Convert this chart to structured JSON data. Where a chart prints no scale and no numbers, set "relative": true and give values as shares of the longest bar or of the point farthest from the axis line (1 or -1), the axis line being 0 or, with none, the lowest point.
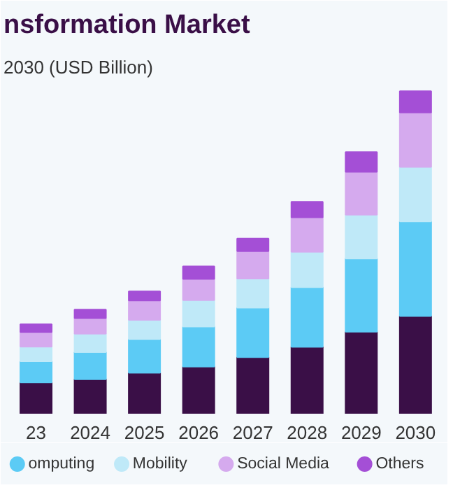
{
  "chart_data": {
    "type": "bar",
    "title": "nsformation Market",
    "subtitle": "2030 (USD Billion)",
    "categories": [
      "23",
      "2024",
      "2025",
      "2026",
      "2027",
      "2028",
      "2029",
      "2030"
    ],
    "stacked": true,
    "relative": true,
    "legend": "bottom",
    "grid": false,
    "series": [
      {
        "color": "#3a0f47",
        "values": [
          0.097,
          0.107,
          0.127,
          0.146,
          0.175,
          0.207,
          0.254,
          0.303
        ]
      },
      {
        "name": "omputing",
        "color": "#5ccbf5",
        "values": [
          0.066,
          0.084,
          0.104,
          0.124,
          0.154,
          0.185,
          0.227,
          0.293
        ]
      },
      {
        "name": "Mobility",
        "color": "#bfe9f8",
        "values": [
          0.045,
          0.057,
          0.06,
          0.082,
          0.09,
          0.11,
          0.136,
          0.169
        ]
      },
      {
        "name": "Social Media",
        "color": "#d5aaee",
        "values": [
          0.045,
          0.048,
          0.06,
          0.066,
          0.085,
          0.107,
          0.133,
          0.169
        ]
      },
      {
        "name": "Others",
        "color": "#a44fd6",
        "values": [
          0.024,
          0.027,
          0.028,
          0.039,
          0.039,
          0.048,
          0.061,
          0.066
        ]
      }
    ]
  }
}
